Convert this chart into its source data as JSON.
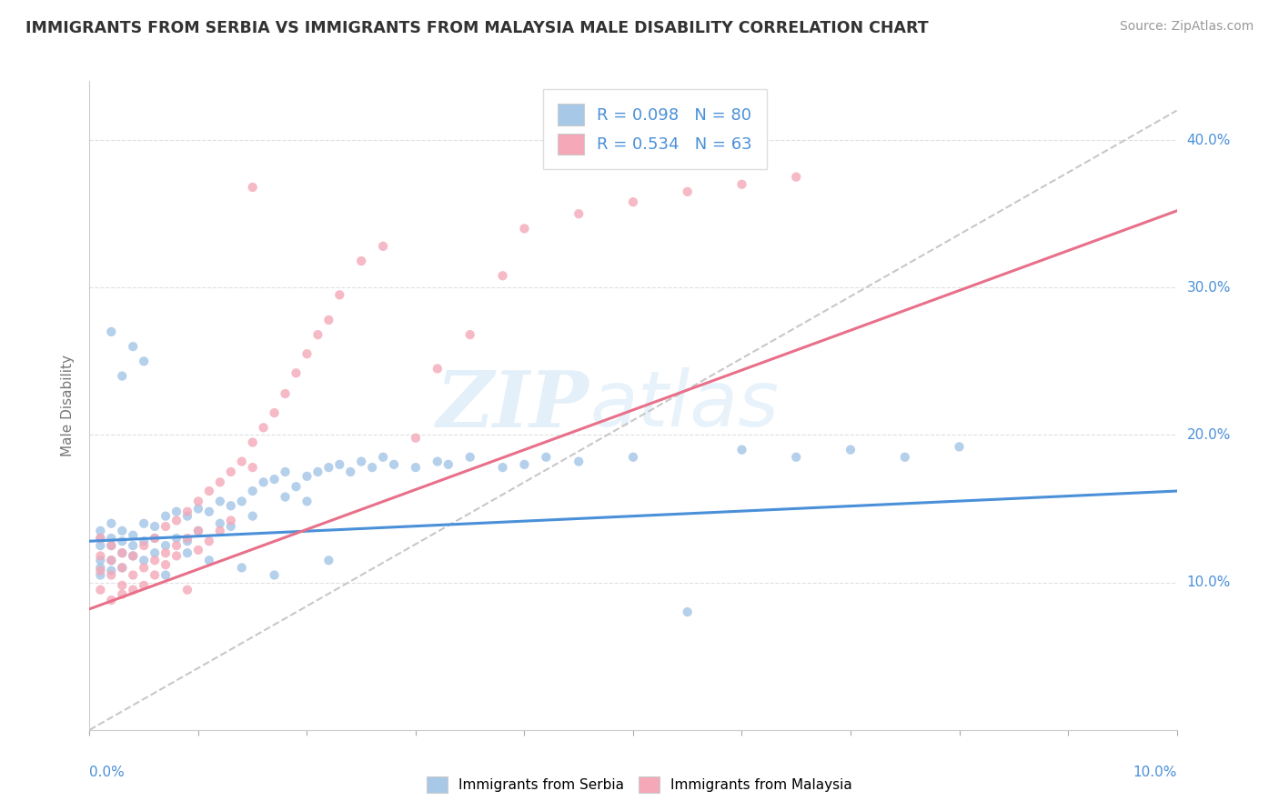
{
  "title": "IMMIGRANTS FROM SERBIA VS IMMIGRANTS FROM MALAYSIA MALE DISABILITY CORRELATION CHART",
  "source": "Source: ZipAtlas.com",
  "ylabel": "Male Disability",
  "serbia_color": "#a8c8e8",
  "malaysia_color": "#f4a8b8",
  "serbia_line_color": "#4a90d9",
  "malaysia_line_color": "#e8708a",
  "ref_line_color": "#c8c8c8",
  "serbia_R": 0.098,
  "serbia_N": 80,
  "malaysia_R": 0.534,
  "malaysia_N": 63,
  "xmin": 0.0,
  "xmax": 0.1,
  "ymin": 0.0,
  "ymax": 0.44,
  "watermark_zip": "ZIP",
  "watermark_atlas": "atlas",
  "serbia_scatter_x": [
    0.001,
    0.001,
    0.001,
    0.001,
    0.001,
    0.001,
    0.002,
    0.002,
    0.002,
    0.002,
    0.002,
    0.003,
    0.003,
    0.003,
    0.003,
    0.004,
    0.004,
    0.004,
    0.005,
    0.005,
    0.005,
    0.006,
    0.006,
    0.006,
    0.007,
    0.007,
    0.008,
    0.008,
    0.009,
    0.009,
    0.01,
    0.01,
    0.011,
    0.012,
    0.012,
    0.013,
    0.013,
    0.014,
    0.015,
    0.015,
    0.016,
    0.017,
    0.018,
    0.018,
    0.019,
    0.02,
    0.02,
    0.021,
    0.022,
    0.023,
    0.024,
    0.025,
    0.026,
    0.027,
    0.028,
    0.03,
    0.032,
    0.033,
    0.035,
    0.038,
    0.04,
    0.042,
    0.045,
    0.05,
    0.055,
    0.06,
    0.065,
    0.07,
    0.075,
    0.08,
    0.002,
    0.003,
    0.004,
    0.005,
    0.007,
    0.009,
    0.011,
    0.014,
    0.017,
    0.022
  ],
  "serbia_scatter_y": [
    0.135,
    0.13,
    0.125,
    0.115,
    0.11,
    0.105,
    0.14,
    0.13,
    0.125,
    0.115,
    0.108,
    0.135,
    0.128,
    0.12,
    0.11,
    0.132,
    0.125,
    0.118,
    0.14,
    0.128,
    0.115,
    0.138,
    0.13,
    0.12,
    0.145,
    0.125,
    0.148,
    0.13,
    0.145,
    0.128,
    0.15,
    0.135,
    0.148,
    0.155,
    0.14,
    0.152,
    0.138,
    0.155,
    0.162,
    0.145,
    0.168,
    0.17,
    0.175,
    0.158,
    0.165,
    0.172,
    0.155,
    0.175,
    0.178,
    0.18,
    0.175,
    0.182,
    0.178,
    0.185,
    0.18,
    0.178,
    0.182,
    0.18,
    0.185,
    0.178,
    0.18,
    0.185,
    0.182,
    0.185,
    0.08,
    0.19,
    0.185,
    0.19,
    0.185,
    0.192,
    0.27,
    0.24,
    0.26,
    0.25,
    0.105,
    0.12,
    0.115,
    0.11,
    0.105,
    0.115
  ],
  "malaysia_scatter_x": [
    0.001,
    0.001,
    0.001,
    0.001,
    0.002,
    0.002,
    0.002,
    0.003,
    0.003,
    0.003,
    0.004,
    0.004,
    0.005,
    0.005,
    0.006,
    0.006,
    0.007,
    0.007,
    0.008,
    0.008,
    0.009,
    0.009,
    0.01,
    0.01,
    0.011,
    0.012,
    0.013,
    0.014,
    0.015,
    0.015,
    0.016,
    0.017,
    0.018,
    0.019,
    0.02,
    0.021,
    0.022,
    0.023,
    0.025,
    0.027,
    0.03,
    0.032,
    0.035,
    0.038,
    0.04,
    0.045,
    0.05,
    0.055,
    0.06,
    0.065,
    0.002,
    0.003,
    0.004,
    0.005,
    0.006,
    0.007,
    0.008,
    0.009,
    0.01,
    0.011,
    0.012,
    0.013,
    0.015
  ],
  "malaysia_scatter_y": [
    0.13,
    0.118,
    0.108,
    0.095,
    0.125,
    0.115,
    0.105,
    0.12,
    0.11,
    0.098,
    0.118,
    0.105,
    0.125,
    0.11,
    0.13,
    0.115,
    0.138,
    0.12,
    0.142,
    0.125,
    0.148,
    0.13,
    0.155,
    0.135,
    0.162,
    0.168,
    0.175,
    0.182,
    0.195,
    0.178,
    0.205,
    0.215,
    0.228,
    0.242,
    0.255,
    0.268,
    0.278,
    0.295,
    0.318,
    0.328,
    0.198,
    0.245,
    0.268,
    0.308,
    0.34,
    0.35,
    0.358,
    0.365,
    0.37,
    0.375,
    0.088,
    0.092,
    0.095,
    0.098,
    0.105,
    0.112,
    0.118,
    0.095,
    0.122,
    0.128,
    0.135,
    0.142,
    0.368
  ]
}
